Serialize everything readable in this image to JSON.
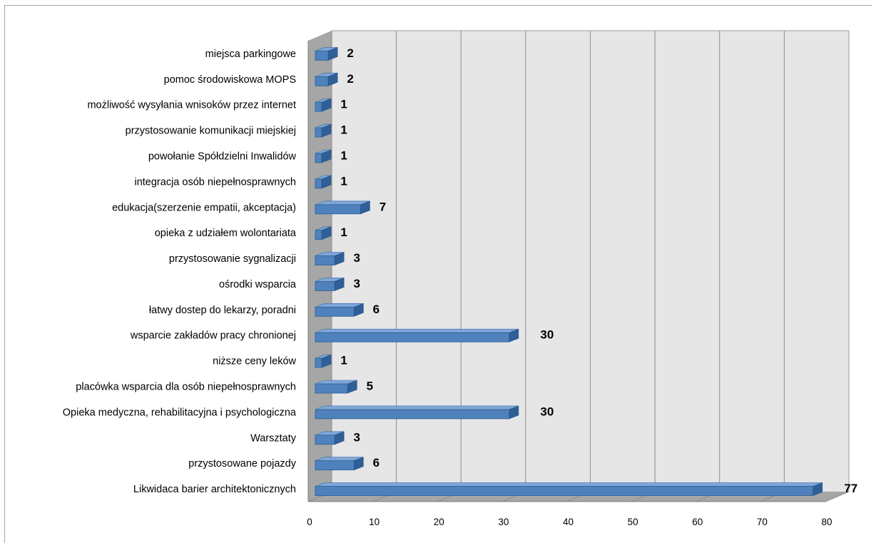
{
  "chart_data": {
    "type": "bar",
    "orientation": "horizontal",
    "style": "3d",
    "title": "",
    "xlabel": "",
    "ylabel": "",
    "xlim": [
      0,
      80
    ],
    "x_ticks": [
      "0",
      "10",
      "20",
      "30",
      "40",
      "50",
      "60",
      "70",
      "80"
    ],
    "grid": true,
    "legend": "none",
    "colors": {
      "bar": "#4f81bd",
      "bar_top": "#7fa7d8",
      "bar_side": "#2f5f96",
      "wall": "#e6e6e6",
      "floor": "#a6a6a6",
      "gridline": "#8c8c8c"
    },
    "categories": [
      "miejsca parkingowe",
      "pomoc środowiskowa MOPS",
      "możliwość wysyłania wnisoków przez internet",
      "przystosowanie komunikacji miejskiej",
      "powołanie Spółdzielni Inwalidów",
      "integracja osób niepełnosprawnych",
      "edukacja(szerzenie empatii, akceptacja)",
      "opieka z udziałem wolontariata",
      "przystosowanie sygnalizacji",
      "ośrodki wsparcia",
      "łatwy dostep do lekarzy, poradni",
      "wsparcie zakładów pracy chronionej",
      "niższe ceny  leków",
      "placówka wsparcia dla osób niepełnosprawnych",
      "Opieka medyczna, rehabilitacyjna i psychologiczna",
      "Warsztaty",
      "przystosowane pojazdy",
      "Likwidaca barier architektonicznych"
    ],
    "values": [
      2,
      2,
      1,
      1,
      1,
      1,
      7,
      1,
      3,
      3,
      6,
      30,
      1,
      5,
      30,
      3,
      6,
      77
    ],
    "value_labels": [
      "2",
      "2",
      "1",
      "1",
      "1",
      "1",
      "7",
      "1",
      "3",
      "3",
      "6",
      "30",
      "1",
      "5",
      "30",
      "3",
      "6",
      "77"
    ]
  }
}
